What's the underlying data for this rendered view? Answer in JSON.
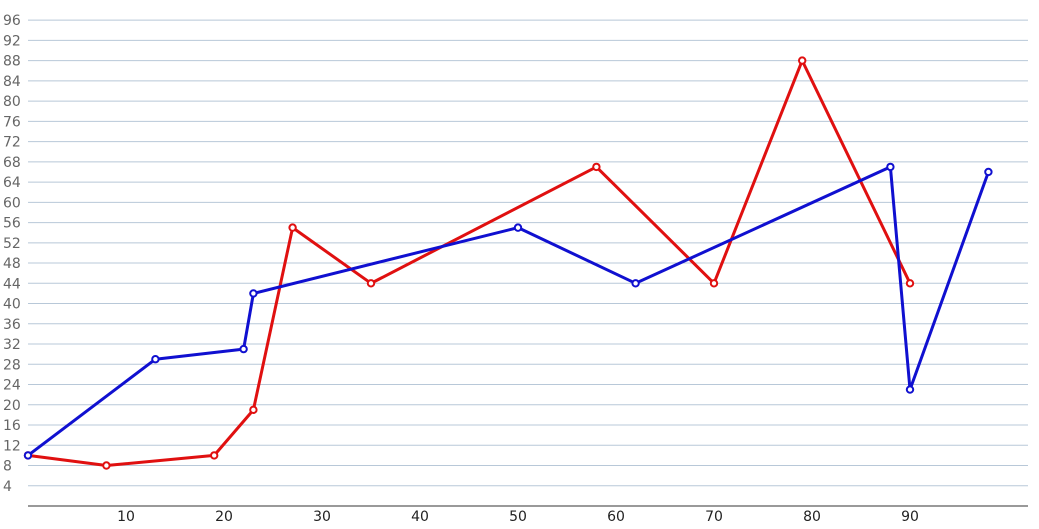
{
  "chart_data": {
    "type": "line",
    "title": "",
    "xlabel": "",
    "ylabel": "",
    "xlim": [
      0,
      100
    ],
    "ylim": [
      0,
      98
    ],
    "x_ticks": [
      10,
      20,
      30,
      40,
      50,
      60,
      70,
      80,
      90
    ],
    "y_ticks": [
      4,
      8,
      12,
      16,
      20,
      24,
      28,
      32,
      36,
      40,
      44,
      48,
      52,
      56,
      60,
      64,
      68,
      72,
      76,
      80,
      84,
      88,
      92,
      96
    ],
    "grid": true,
    "legend": "none",
    "series": [
      {
        "color": "#e01010",
        "x": [
          0,
          8,
          19,
          23,
          27,
          35,
          58,
          70,
          79,
          90
        ],
        "y": [
          10,
          8,
          10,
          19,
          55,
          44,
          67,
          44,
          88,
          44
        ]
      },
      {
        "color": "#1010d0",
        "x": [
          0,
          13,
          22,
          23,
          50,
          62,
          88,
          90,
          98
        ],
        "y": [
          10,
          29,
          31,
          42,
          55,
          44,
          67,
          23,
          66
        ]
      }
    ]
  }
}
